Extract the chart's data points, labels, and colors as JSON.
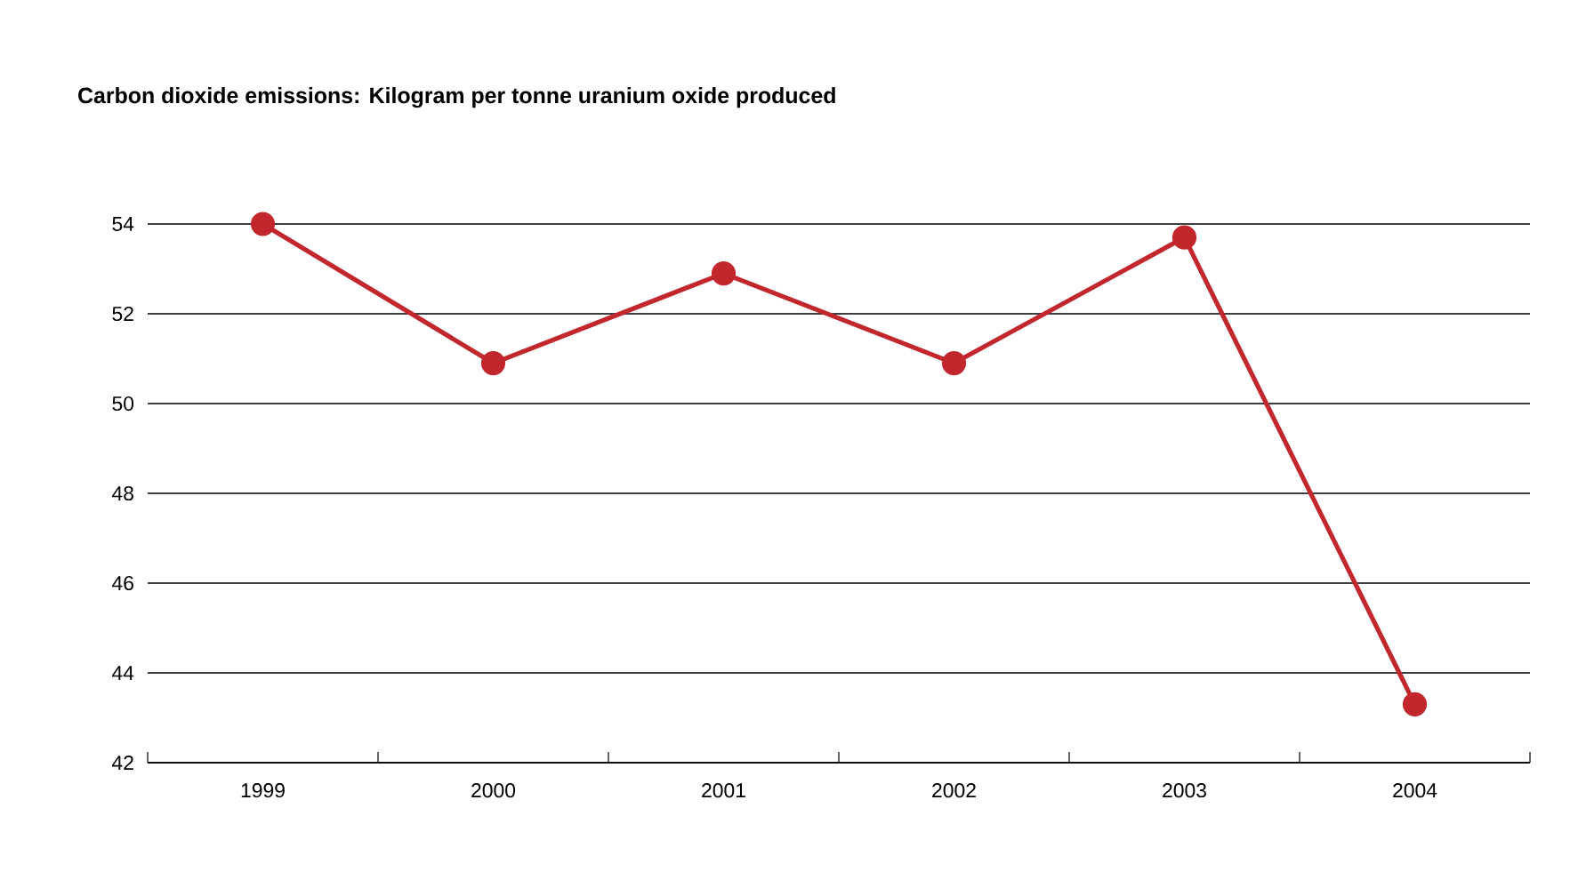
{
  "chart_data": {
    "type": "line",
    "title": "Carbon dioxide emissions: Kilogram per tonne uranium oxide produced",
    "categories": [
      "1999",
      "2000",
      "2001",
      "2002",
      "2003",
      "2004"
    ],
    "values": [
      54,
      50.9,
      52.9,
      50.9,
      53.7,
      43.3
    ],
    "color": "#c1272d",
    "ylim": [
      42,
      54
    ],
    "yticks": [
      42,
      44,
      46,
      48,
      50,
      52,
      54
    ],
    "grid": "y",
    "marker": "circle",
    "line_style": "solid"
  }
}
